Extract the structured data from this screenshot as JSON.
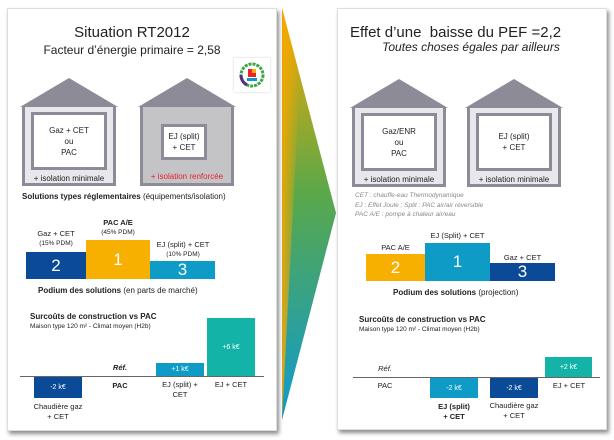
{
  "left": {
    "title": "Situation RT2012",
    "subtitle": "Facteur d’énergie primaire = 2,58",
    "logo_text": "Bâtiment Basse Consommation 2012",
    "houses": [
      {
        "text": [
          "Gaz + CET",
          "ou",
          "PAC"
        ],
        "isolation": "+ isolation minimale"
      },
      {
        "text": [
          "EJ (split)",
          "+ CET"
        ],
        "isolation": "+ isolation renforcée"
      }
    ],
    "solutions_bold": "Solutions types réglementaires",
    "solutions_rest": "(équipements/isolation)",
    "podium": [
      {
        "rank": "2",
        "label": "Gaz + CET",
        "share": "(15% PDM)"
      },
      {
        "rank": "1",
        "label": "PAC A/E",
        "share": "(45% PDM)"
      },
      {
        "rank": "3",
        "label": "EJ (split) + CET",
        "share": "(10% PDM)"
      }
    ],
    "podium_bold": "Podium des solutions",
    "podium_rest": "(en parts de marché)",
    "costs_title": "Surcoûts de construction vs PAC",
    "costs_sub": "Maison type 120 m² - Climat moyen (H2b)",
    "costs": [
      {
        "value": "-2 k€",
        "label": [
          "Chaudière gaz",
          "+ CET"
        ]
      },
      {
        "value": "Réf.",
        "label": [
          "PAC"
        ]
      },
      {
        "value": "+1 k€",
        "label": [
          "EJ (split) +",
          "CET"
        ]
      },
      {
        "value": "+6 k€",
        "label": [
          "EJ + CET"
        ]
      }
    ]
  },
  "right": {
    "title": "Effet d’une  baisse du PEF =2,2",
    "subtitle": "Toutes choses égales par ailleurs",
    "houses": [
      {
        "text": [
          "Gaz/ENR",
          "ou",
          "PAC"
        ],
        "isolation": "+ isolation minimale"
      },
      {
        "text": [
          "EJ (split)",
          "+ CET"
        ],
        "isolation": "+ isolation minimale"
      }
    ],
    "legend": [
      "CET : chauffe-eau Thermodynamique",
      "EJ : Effet Joule ; Split : PAC air/air réversible",
      "PAC A/E : pompe à chaleur air/eau"
    ],
    "podium": [
      {
        "rank": "2",
        "label": "PAC A/E"
      },
      {
        "rank": "1",
        "label": "EJ (Split) + CET"
      },
      {
        "rank": "3",
        "label": "Gaz + CET"
      }
    ],
    "podium_bold": "Podium des solutions",
    "podium_rest": "(projection)",
    "costs_title": "Surcoûts de construction vs PAC",
    "costs_sub": "Maison type 120 m² - Climat moyen (H2b)",
    "costs": [
      {
        "value": "Réf.",
        "label": [
          "PAC"
        ]
      },
      {
        "value": "-2 k€",
        "label": [
          "EJ (split)",
          "+ CET"
        ]
      },
      {
        "value": "-2 k€",
        "label": [
          "Chaudière gaz",
          "+ CET"
        ]
      },
      {
        "value": "+2 k€",
        "label": [
          "EJ + CET"
        ]
      }
    ]
  },
  "colors": {
    "dark_blue": "#0b4a97",
    "orange": "#f7b000",
    "light_blue": "#0e9cc6",
    "teal": "#14b3a8",
    "red": "#e8242a",
    "house_gray": "#8e8b99"
  }
}
